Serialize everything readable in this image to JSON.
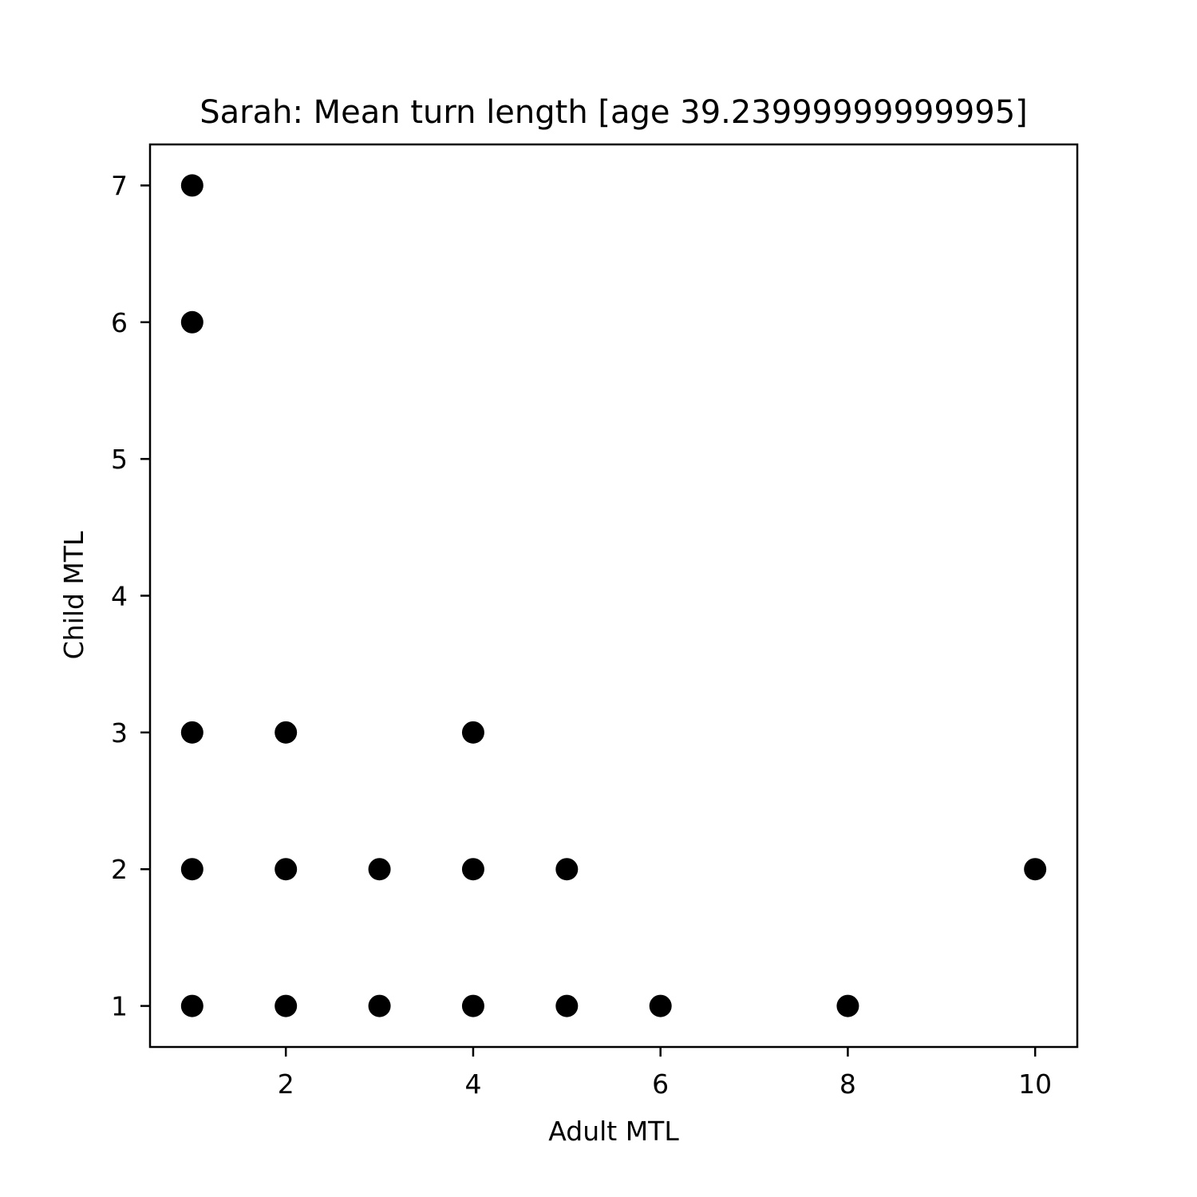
{
  "chart_data": {
    "type": "scatter",
    "title": "Sarah: Mean turn length [age 39.23999999999995]",
    "xlabel": "Adult MTL",
    "ylabel": "Child MTL",
    "xlim": [
      0.55,
      10.45
    ],
    "ylim": [
      0.7,
      7.3
    ],
    "xticks": [
      2,
      4,
      6,
      8,
      10
    ],
    "yticks": [
      1,
      2,
      3,
      4,
      5,
      6,
      7
    ],
    "grid": false,
    "legend": "none",
    "marker_color": "#000000",
    "points": [
      {
        "x": 1,
        "y": 7
      },
      {
        "x": 1,
        "y": 6
      },
      {
        "x": 1,
        "y": 3
      },
      {
        "x": 1,
        "y": 2
      },
      {
        "x": 1,
        "y": 1
      },
      {
        "x": 2,
        "y": 3
      },
      {
        "x": 2,
        "y": 2
      },
      {
        "x": 2,
        "y": 1
      },
      {
        "x": 3,
        "y": 2
      },
      {
        "x": 3,
        "y": 1
      },
      {
        "x": 4,
        "y": 3
      },
      {
        "x": 4,
        "y": 2
      },
      {
        "x": 4,
        "y": 1
      },
      {
        "x": 5,
        "y": 2
      },
      {
        "x": 5,
        "y": 1
      },
      {
        "x": 6,
        "y": 1
      },
      {
        "x": 8,
        "y": 1
      },
      {
        "x": 10,
        "y": 2
      }
    ]
  }
}
